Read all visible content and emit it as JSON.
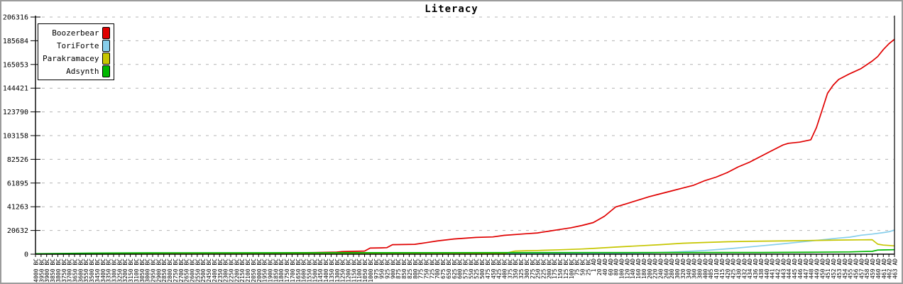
{
  "window": {
    "background": "#ffffff",
    "frame_color": "#9c9c9c"
  },
  "chart_data": {
    "type": "line",
    "title": "Literacy",
    "xlabel": "",
    "ylabel": "",
    "ylim": [
      0,
      206316
    ],
    "y_ticks": [
      0,
      20632,
      41263,
      61895,
      82526,
      103158,
      123790,
      144421,
      165053,
      185684,
      206316
    ],
    "grid": "horizontal-dashed-gray",
    "legend_position": "top-left",
    "axis_color": "#000000",
    "grid_color": "#b4b4b4",
    "x_labels": [
      "4000 BC",
      "3950 BC",
      "3900 BC",
      "3850 BC",
      "3800 BC",
      "3750 BC",
      "3700 BC",
      "3650 BC",
      "3600 BC",
      "3550 BC",
      "3500 BC",
      "3450 BC",
      "3400 BC",
      "3350 BC",
      "3300 BC",
      "3250 BC",
      "3200 BC",
      "3150 BC",
      "3100 BC",
      "3050 BC",
      "3000 BC",
      "2950 BC",
      "2900 BC",
      "2850 BC",
      "2800 BC",
      "2750 BC",
      "2700 BC",
      "2650 BC",
      "2600 BC",
      "2550 BC",
      "2500 BC",
      "2450 BC",
      "2400 BC",
      "2350 BC",
      "2300 BC",
      "2250 BC",
      "2200 BC",
      "2150 BC",
      "2100 BC",
      "2050 BC",
      "2000 BC",
      "1950 BC",
      "1900 BC",
      "1850 BC",
      "1800 BC",
      "1750 BC",
      "1700 BC",
      "1650 BC",
      "1600 BC",
      "1550 BC",
      "1500 BC",
      "1450 BC",
      "1400 BC",
      "1350 BC",
      "1300 BC",
      "1250 BC",
      "1200 BC",
      "1150 BC",
      "1100 BC",
      "1050 BC",
      "1000 BC",
      "975 BC",
      "950 BC",
      "925 BC",
      "900 BC",
      "875 BC",
      "850 BC",
      "825 BC",
      "800 BC",
      "775 BC",
      "750 BC",
      "725 BC",
      "700 BC",
      "675 BC",
      "650 BC",
      "625 BC",
      "600 BC",
      "575 BC",
      "550 BC",
      "525 BC",
      "500 BC",
      "475 BC",
      "450 BC",
      "425 BC",
      "400 BC",
      "375 BC",
      "350 BC",
      "325 BC",
      "300 BC",
      "275 BC",
      "250 BC",
      "225 BC",
      "200 BC",
      "175 BC",
      "150 BC",
      "125 BC",
      "100 BC",
      "75 BC",
      "50 BC",
      "25 BC",
      "1 AD",
      "20 AD",
      "40 AD",
      "60 AD",
      "80 AD",
      "100 AD",
      "120 AD",
      "140 AD",
      "160 AD",
      "180 AD",
      "200 AD",
      "220 AD",
      "240 AD",
      "260 AD",
      "280 AD",
      "300 AD",
      "320 AD",
      "340 AD",
      "360 AD",
      "380 AD",
      "400 AD",
      "405 AD",
      "410 AD",
      "415 AD",
      "420 AD",
      "425 AD",
      "430 AD",
      "432 AD",
      "434 AD",
      "436 AD",
      "438 AD",
      "440 AD",
      "441 AD",
      "442 AD",
      "443 AD",
      "444 AD",
      "445 AD",
      "446 AD",
      "447 AD",
      "448 AD",
      "449 AD",
      "450 AD",
      "451 AD",
      "452 AD",
      "453 AD",
      "454 AD",
      "455 AD",
      "456 AD",
      "457 AD",
      "458 AD",
      "459 AD",
      "460 AD",
      "461 AD",
      "462 AD",
      "463 AD"
    ],
    "series": [
      {
        "name": "Boozerbear",
        "color": "#e00000",
        "points": [
          [
            0,
            200
          ],
          [
            20,
            500
          ],
          [
            40,
            900
          ],
          [
            50,
            1400
          ],
          [
            54,
            1800
          ],
          [
            55,
            2300
          ],
          [
            57,
            2500
          ],
          [
            59,
            2700
          ],
          [
            60,
            5300
          ],
          [
            62,
            5500
          ],
          [
            63,
            5700
          ],
          [
            64,
            8300
          ],
          [
            68,
            8600
          ],
          [
            70,
            10000
          ],
          [
            72,
            11500
          ],
          [
            75,
            13200
          ],
          [
            79,
            14600
          ],
          [
            82,
            15000
          ],
          [
            84,
            16400
          ],
          [
            88,
            17800
          ],
          [
            90,
            18500
          ],
          [
            92,
            20000
          ],
          [
            94,
            21500
          ],
          [
            96,
            23000
          ],
          [
            98,
            25000
          ],
          [
            100,
            27500
          ],
          [
            102,
            33000
          ],
          [
            104,
            41000
          ],
          [
            106,
            44000
          ],
          [
            108,
            47000
          ],
          [
            110,
            50000
          ],
          [
            112,
            52500
          ],
          [
            114,
            55000
          ],
          [
            116,
            57500
          ],
          [
            118,
            60000
          ],
          [
            120,
            64000
          ],
          [
            122,
            67000
          ],
          [
            124,
            71000
          ],
          [
            126,
            76000
          ],
          [
            128,
            80000
          ],
          [
            130,
            85000
          ],
          [
            132,
            90000
          ],
          [
            134,
            95000
          ],
          [
            135,
            96500
          ],
          [
            137,
            97500
          ],
          [
            139,
            99500
          ],
          [
            140,
            110000
          ],
          [
            141,
            125000
          ],
          [
            142,
            140000
          ],
          [
            143,
            147000
          ],
          [
            144,
            152000
          ],
          [
            146,
            157000
          ],
          [
            148,
            161500
          ],
          [
            150,
            168000
          ],
          [
            151,
            172000
          ],
          [
            152,
            178000
          ],
          [
            153,
            183000
          ],
          [
            154,
            187000
          ]
        ]
      },
      {
        "name": "ToriForte",
        "color": "#87ceeb",
        "points": [
          [
            0,
            100
          ],
          [
            40,
            300
          ],
          [
            80,
            400
          ],
          [
            100,
            600
          ],
          [
            105,
            800
          ],
          [
            110,
            1200
          ],
          [
            115,
            2000
          ],
          [
            120,
            3200
          ],
          [
            125,
            5000
          ],
          [
            130,
            7200
          ],
          [
            134,
            9000
          ],
          [
            138,
            11000
          ],
          [
            140,
            12000
          ],
          [
            144,
            14000
          ],
          [
            146,
            14800
          ],
          [
            148,
            16500
          ],
          [
            150,
            17500
          ],
          [
            152,
            18800
          ],
          [
            153,
            19500
          ],
          [
            154,
            21000
          ]
        ]
      },
      {
        "name": "Parakramacey",
        "color": "#c6c600",
        "points": [
          [
            0,
            100
          ],
          [
            40,
            300
          ],
          [
            80,
            400
          ],
          [
            84,
            500
          ],
          [
            86,
            2700
          ],
          [
            88,
            3000
          ],
          [
            90,
            3200
          ],
          [
            94,
            3800
          ],
          [
            98,
            4500
          ],
          [
            100,
            5000
          ],
          [
            104,
            6200
          ],
          [
            108,
            7200
          ],
          [
            112,
            8300
          ],
          [
            116,
            9500
          ],
          [
            120,
            10200
          ],
          [
            124,
            10800
          ],
          [
            128,
            11200
          ],
          [
            132,
            11400
          ],
          [
            136,
            11700
          ],
          [
            140,
            12000
          ],
          [
            144,
            12300
          ],
          [
            148,
            12500
          ],
          [
            150,
            12600
          ],
          [
            151,
            8700
          ],
          [
            152,
            7900
          ],
          [
            153,
            7600
          ],
          [
            154,
            7200
          ]
        ]
      },
      {
        "name": "Adsynth",
        "color": "#00b800",
        "points": [
          [
            0,
            400
          ],
          [
            10,
            900
          ],
          [
            20,
            1200
          ],
          [
            60,
            1300
          ],
          [
            100,
            1400
          ],
          [
            130,
            1500
          ],
          [
            140,
            1700
          ],
          [
            146,
            2000
          ],
          [
            148,
            2300
          ],
          [
            150,
            2500
          ],
          [
            151,
            3600
          ],
          [
            152,
            3700
          ],
          [
            154,
            3900
          ]
        ]
      }
    ]
  }
}
